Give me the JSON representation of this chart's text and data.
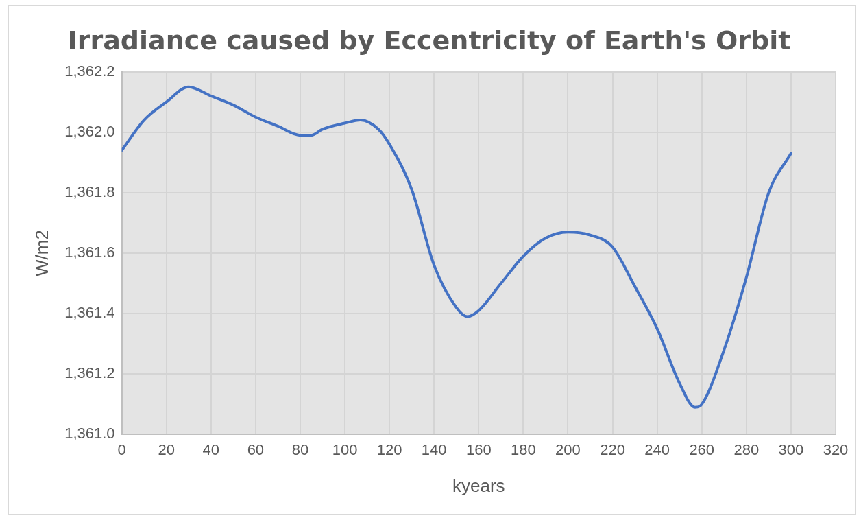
{
  "chart_data": {
    "type": "line",
    "title": "Irradiance caused by Eccentricity of Earth's Orbit",
    "xlabel": "kyears",
    "ylabel": "W/m2",
    "x": [
      0,
      10,
      20,
      30,
      40,
      50,
      60,
      70,
      80,
      85,
      90,
      100,
      107,
      115,
      120,
      130,
      140,
      150,
      155,
      160,
      170,
      180,
      190,
      200,
      210,
      220,
      230,
      240,
      250,
      257,
      260,
      270,
      280,
      290,
      300
    ],
    "series": [
      {
        "color": "#4472c4",
        "values": [
          1361.94,
          1362.04,
          1362.1,
          1362.15,
          1362.12,
          1362.09,
          1362.05,
          1362.02,
          1361.99,
          1361.99,
          1362.01,
          1362.03,
          1362.04,
          1362.01,
          1361.96,
          1361.81,
          1361.56,
          1361.42,
          1361.39,
          1361.41,
          1361.5,
          1361.59,
          1361.65,
          1361.67,
          1361.66,
          1361.62,
          1361.49,
          1361.35,
          1361.17,
          1361.09,
          1361.1,
          1361.28,
          1361.52,
          1361.8,
          1361.93
        ]
      }
    ],
    "xlim": [
      0,
      320
    ],
    "xticks": [
      0,
      20,
      40,
      60,
      80,
      100,
      120,
      140,
      160,
      180,
      200,
      220,
      240,
      260,
      280,
      300,
      320
    ],
    "ylim": [
      1361.0,
      1362.2
    ],
    "yticks": [
      {
        "value": 1361.0,
        "label": "1,361.0"
      },
      {
        "value": 1361.2,
        "label": "1,361.2"
      },
      {
        "value": 1361.4,
        "label": "1,361.4"
      },
      {
        "value": 1361.6,
        "label": "1,361.6"
      },
      {
        "value": 1361.8,
        "label": "1,361.8"
      },
      {
        "value": 1362.0,
        "label": "1,362.0"
      },
      {
        "value": 1362.2,
        "label": "1,362.2"
      }
    ],
    "grid": true,
    "legend": false,
    "marker": "none",
    "line_style": "solid"
  }
}
